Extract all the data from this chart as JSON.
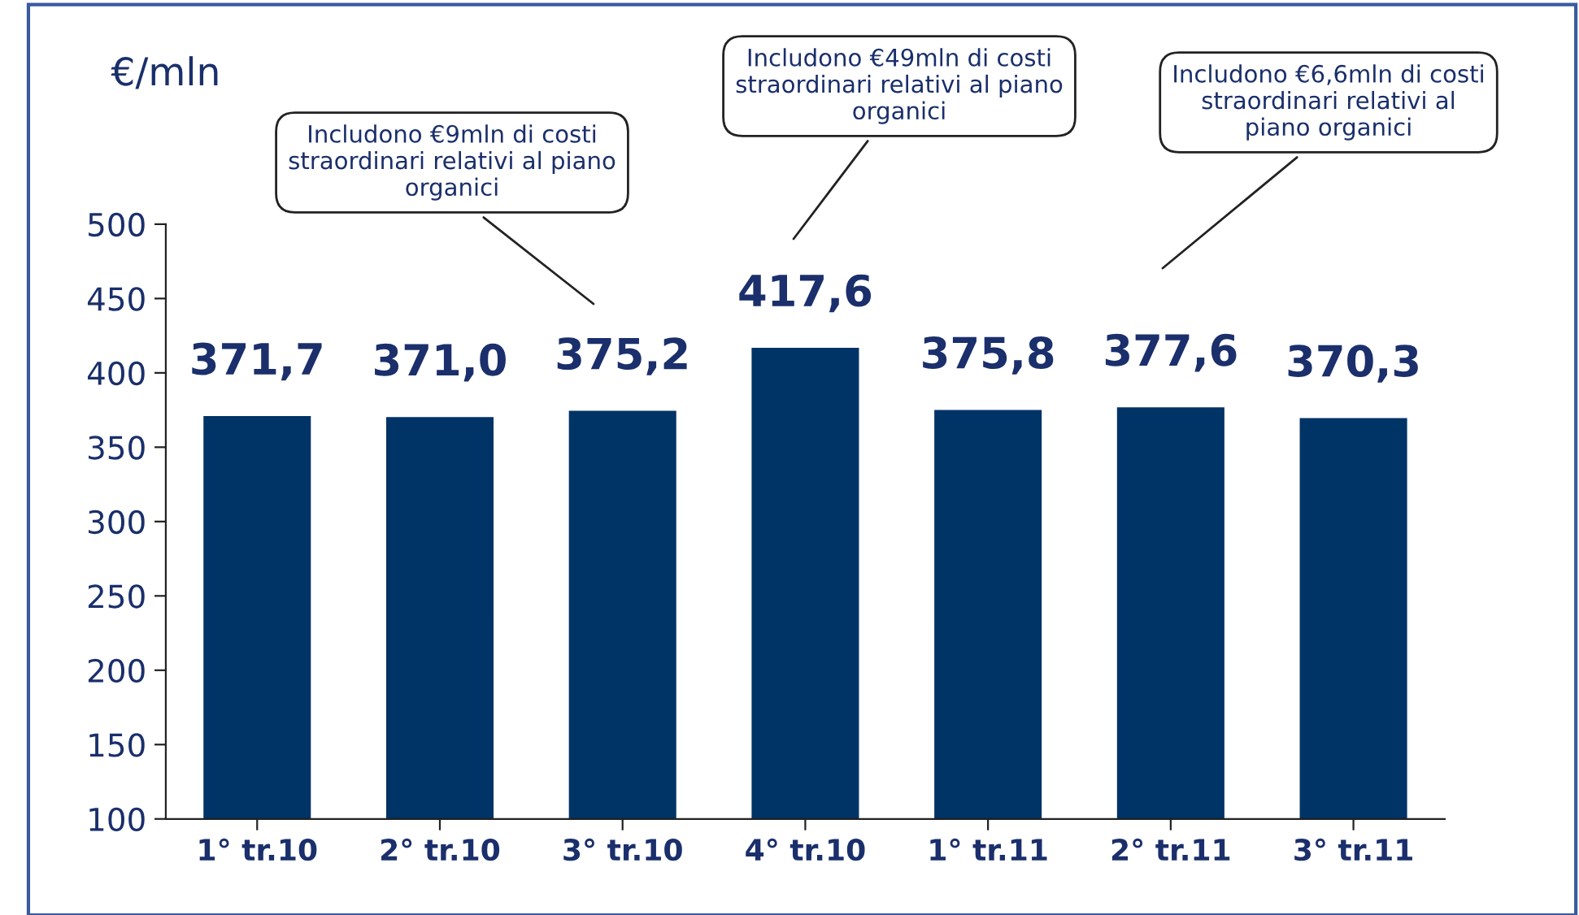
{
  "chart_data": {
    "type": "bar",
    "ylabel": "€/mln",
    "categories": [
      "1° tr.10",
      "2° tr.10",
      "3° tr.10",
      "4° tr.10",
      "1° tr.11",
      "2° tr.11",
      "3° tr.11"
    ],
    "values": [
      371.7,
      371.0,
      375.2,
      417.6,
      375.8,
      377.6,
      370.3
    ],
    "value_labels": [
      "371,7",
      "371,0",
      "375,2",
      "417,6",
      "375,8",
      "377,6",
      "370,3"
    ],
    "color": "#003366",
    "ylim": [
      100,
      500
    ],
    "yticks": [
      100,
      150,
      200,
      250,
      300,
      350,
      400,
      450,
      500
    ],
    "grid": false,
    "annotations": [
      "Includono €9mln di costi\nstraordinari relativi al piano\norganici",
      "Includono €49mln di costi\nstraordinari relativi al piano\norganici",
      "Includono €6,6mln di costi\nstraordinari relativi al\npiano organici"
    ]
  }
}
